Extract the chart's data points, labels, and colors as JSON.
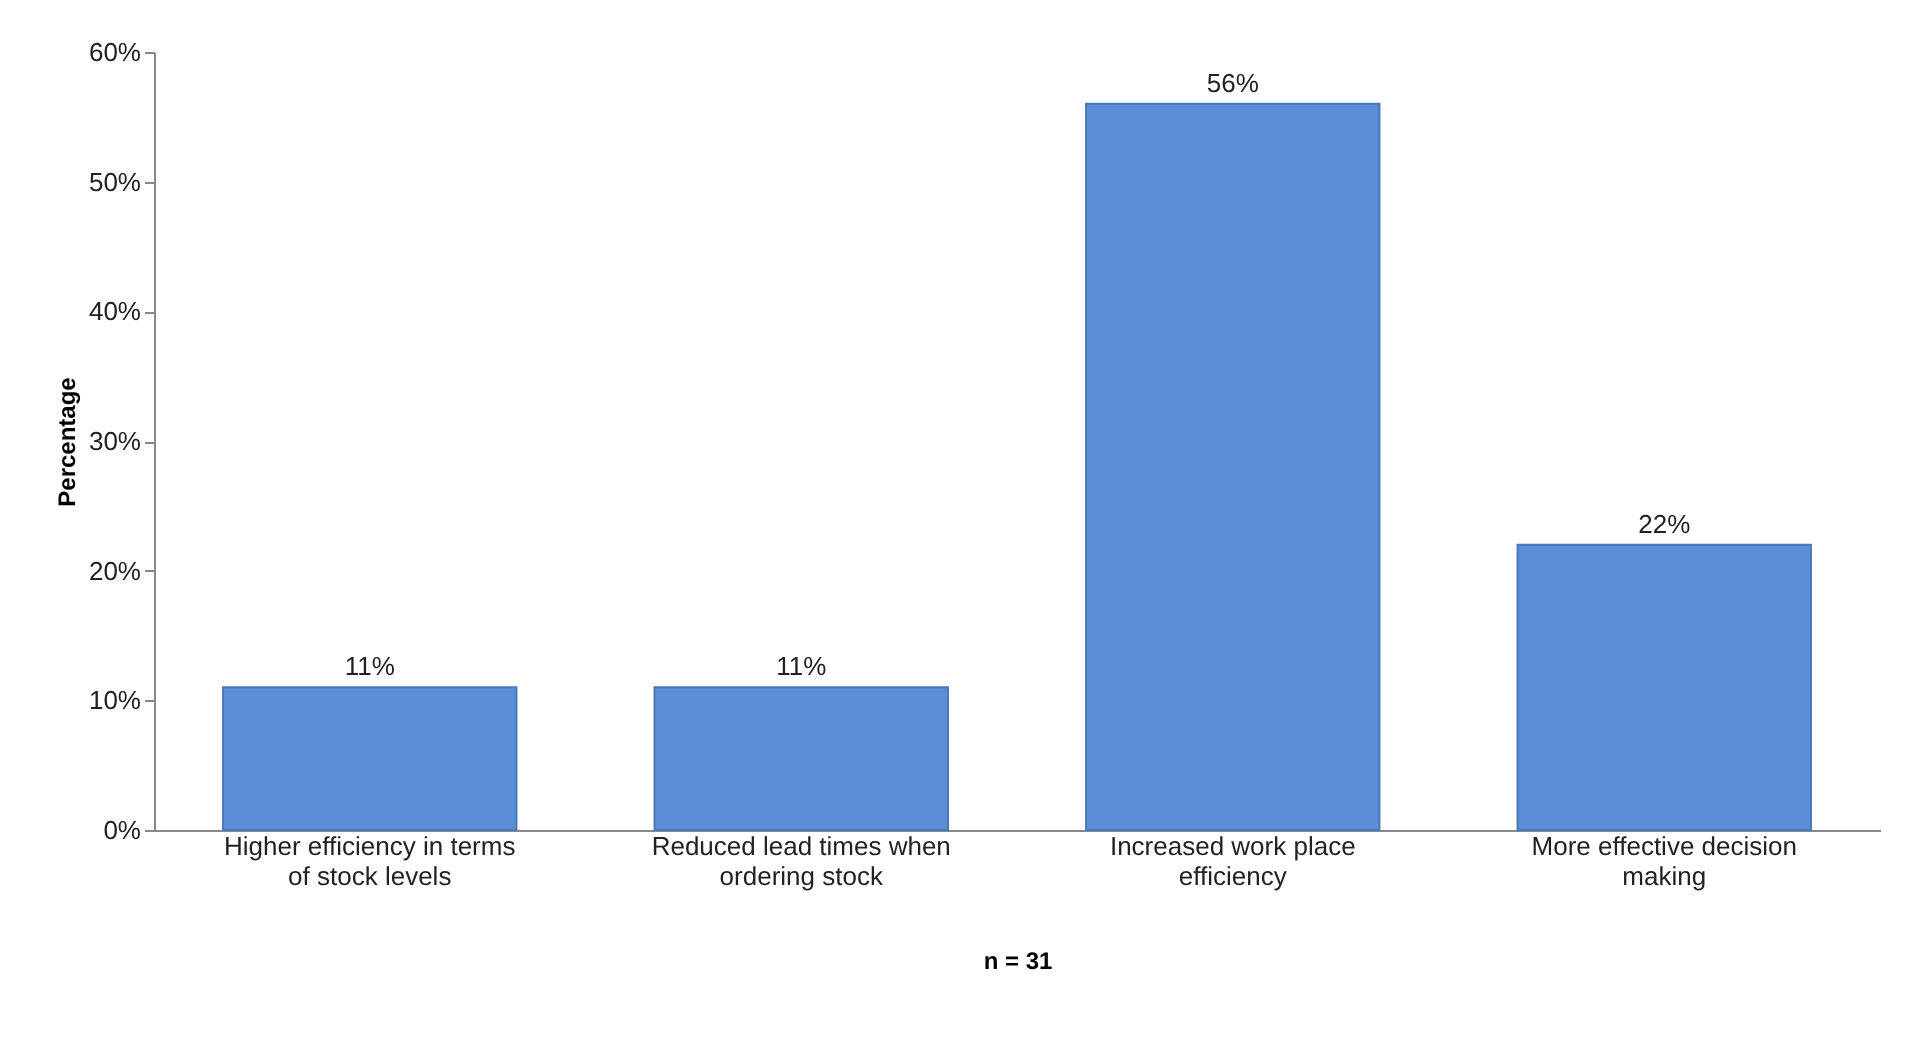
{
  "chart_data": {
    "type": "bar",
    "xlabel": "n = 31",
    "ylabel": "Percentage",
    "categories": [
      "Higher efficiency in terms of stock levels",
      "Reduced lead times when ordering stock",
      "Increased work place efficiency",
      "More effective decision making"
    ],
    "values": [
      11,
      11,
      56,
      22
    ],
    "value_labels": [
      "11%",
      "11%",
      "56%",
      "22%"
    ],
    "color": "#5b8ed6",
    "ylim": [
      0,
      60
    ],
    "yticks": [
      {
        "value": 0,
        "label": "0%"
      },
      {
        "value": 10,
        "label": "10%"
      },
      {
        "value": 20,
        "label": "20%"
      },
      {
        "value": 30,
        "label": "30%"
      },
      {
        "value": 40,
        "label": "40%"
      },
      {
        "value": 50,
        "label": "50%"
      },
      {
        "value": 60,
        "label": "60%"
      }
    ],
    "grid": false
  }
}
